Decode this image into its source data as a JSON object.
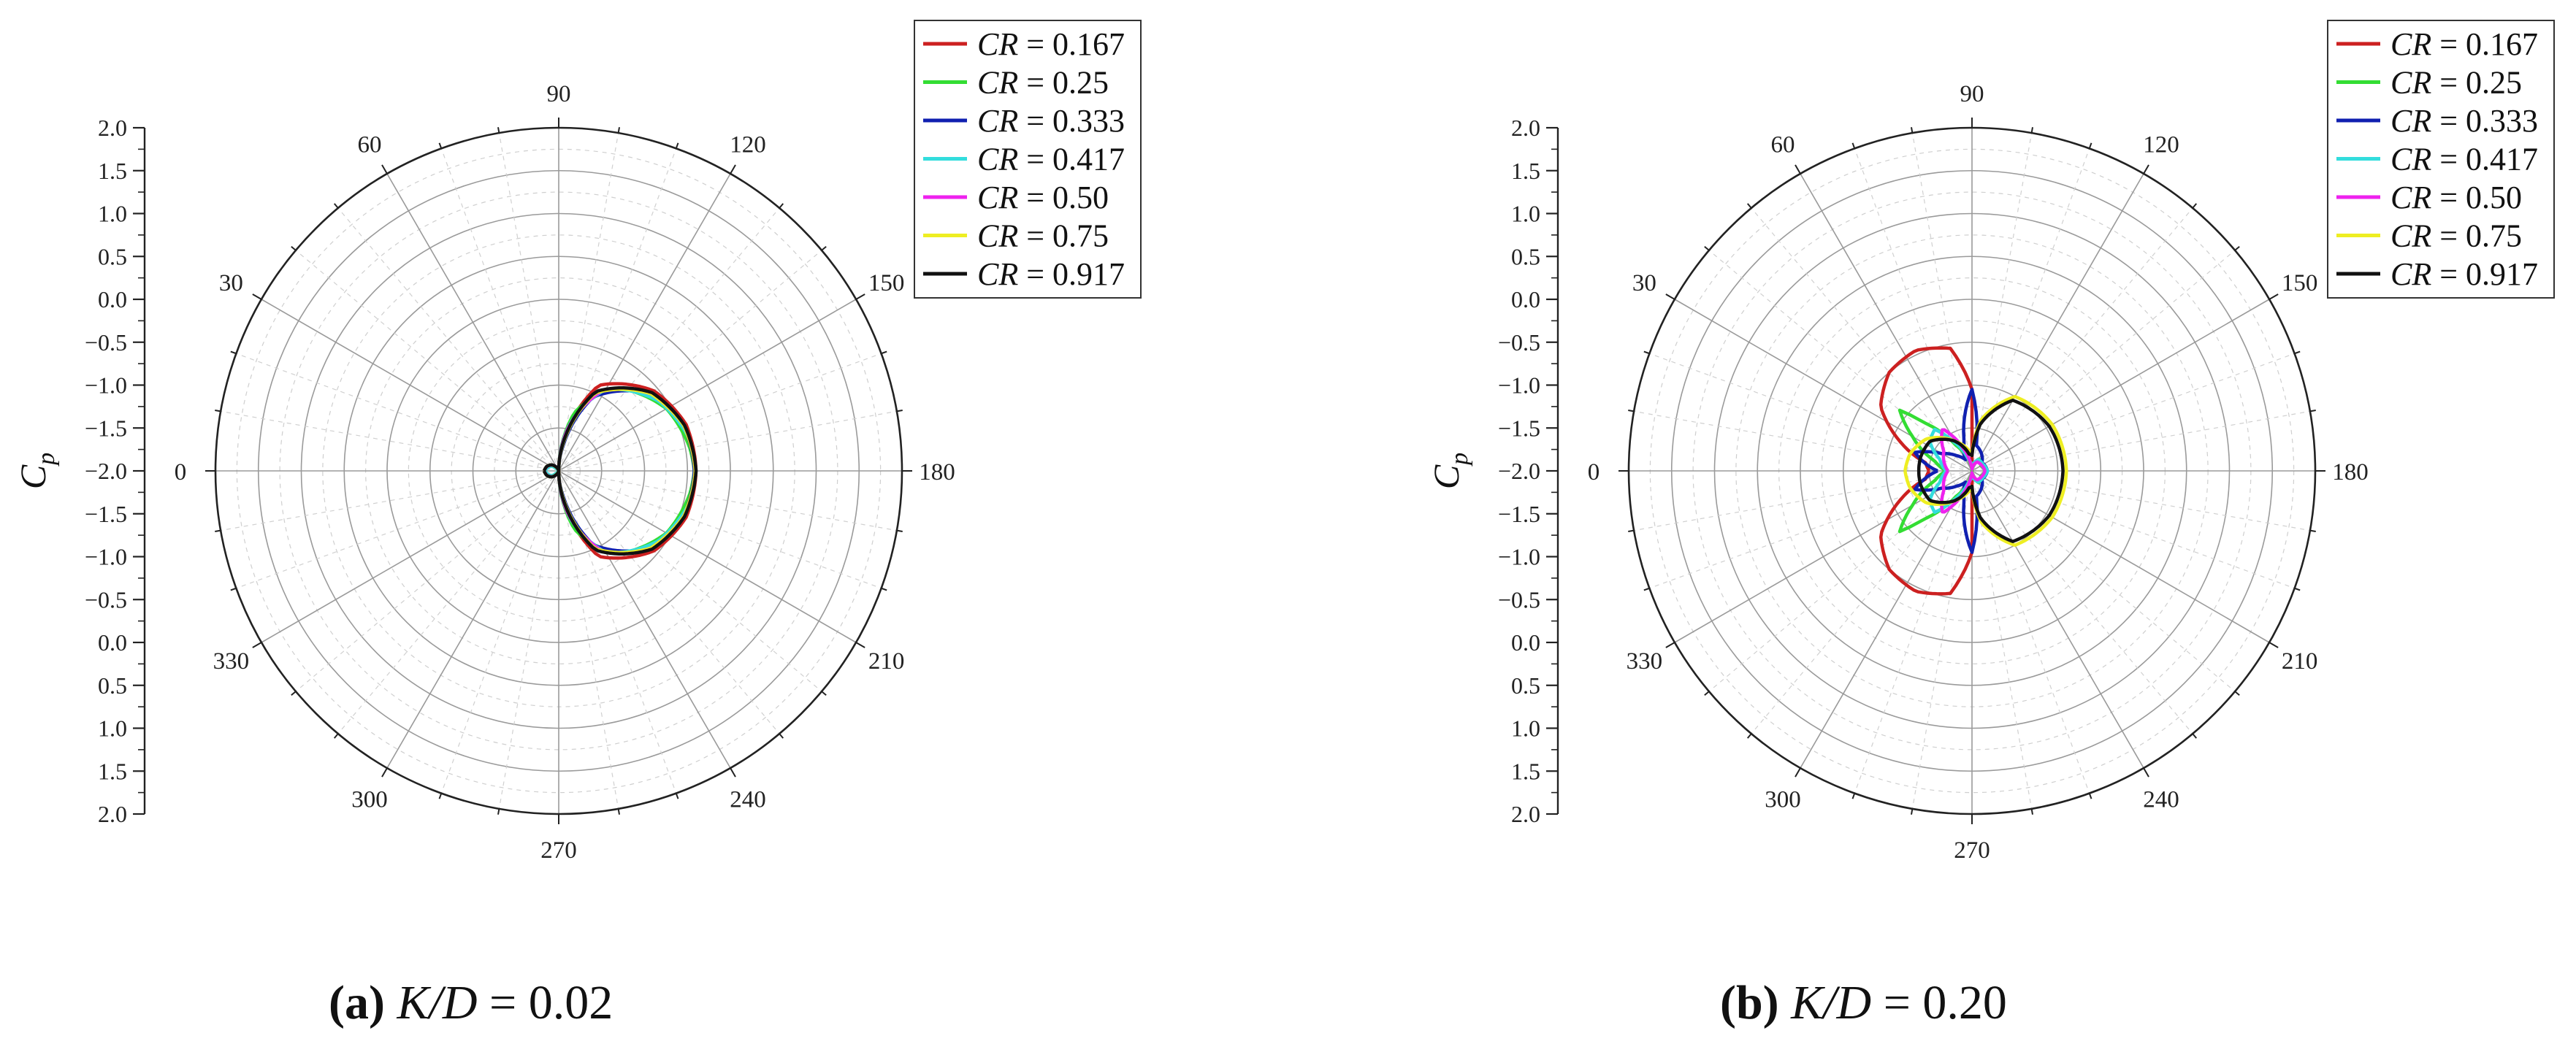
{
  "chart_data": [
    {
      "type": "polar-line",
      "panel": "a",
      "caption": {
        "letter": "(a)",
        "text_italic": "K/D",
        "text_rest": " = 0.02"
      },
      "ylabel": {
        "main": "C",
        "sub": "p"
      },
      "radial_axis": {
        "cp_range": [
          -2.0,
          2.0
        ],
        "tick_labels": [
          "2.0",
          "1.5",
          "1.0",
          "0.5",
          "0.0",
          "-0.5",
          "-1.0",
          "-1.5",
          "-2.0",
          "-1.5",
          "-1.0",
          "-0.5",
          "0.0",
          "0.5",
          "1.0",
          "1.5",
          "2.0"
        ]
      },
      "angular_axis": {
        "unit": "deg",
        "labels": [
          "0",
          "30",
          "60",
          "90",
          "120",
          "150",
          "180",
          "210",
          "240",
          "270",
          "300",
          "330"
        ]
      },
      "series": [
        {
          "name": "CR = 0.167",
          "color": "#cc2020",
          "key": [
            [
              0,
              -1.84
            ],
            [
              20,
              -1.86
            ],
            [
              40,
              -1.9
            ],
            [
              58,
              -1.98
            ],
            [
              75,
              -2.0
            ],
            [
              90,
              -2.0
            ],
            [
              100,
              -1.6
            ],
            [
              115,
              -0.9
            ],
            [
              140,
              -0.55
            ],
            [
              160,
              -0.42
            ],
            [
              180,
              -0.4
            ]
          ]
        },
        {
          "name": "CR = 0.25",
          "color": "#33dd33",
          "key": [
            [
              0,
              -1.84
            ],
            [
              20,
              -1.86
            ],
            [
              40,
              -1.92
            ],
            [
              55,
              -2.0
            ],
            [
              70,
              -2.0
            ],
            [
              90,
              -2.0
            ],
            [
              105,
              -1.3
            ],
            [
              125,
              -0.82
            ],
            [
              150,
              -0.55
            ],
            [
              170,
              -0.45
            ],
            [
              180,
              -0.42
            ]
          ]
        },
        {
          "name": "CR = 0.333",
          "color": "#1020b0",
          "key": [
            [
              0,
              -1.84
            ],
            [
              22,
              -1.86
            ],
            [
              40,
              -1.9
            ],
            [
              58,
              -1.97
            ],
            [
              72,
              -2.0
            ],
            [
              90,
              -2.0
            ],
            [
              100,
              -1.7
            ],
            [
              115,
              -1.05
            ],
            [
              140,
              -0.6
            ],
            [
              160,
              -0.45
            ],
            [
              180,
              -0.42
            ]
          ]
        },
        {
          "name": "CR = 0.417",
          "color": "#33dddd",
          "key": [
            [
              0,
              -1.84
            ],
            [
              18,
              -1.87
            ],
            [
              35,
              -1.9
            ],
            [
              50,
              -2.0
            ],
            [
              65,
              -2.0
            ],
            [
              90,
              -2.0
            ],
            [
              103,
              -1.45
            ],
            [
              120,
              -0.9
            ],
            [
              145,
              -0.58
            ],
            [
              165,
              -0.44
            ],
            [
              180,
              -0.4
            ]
          ]
        },
        {
          "name": "CR = 0.50",
          "color": "#ee22ee",
          "key": [
            [
              0,
              -1.83
            ],
            [
              25,
              -1.86
            ],
            [
              42,
              -1.9
            ],
            [
              62,
              -1.96
            ],
            [
              80,
              -2.0
            ],
            [
              90,
              -2.0
            ],
            [
              102,
              -1.5
            ],
            [
              118,
              -0.95
            ],
            [
              140,
              -0.6
            ],
            [
              160,
              -0.45
            ],
            [
              180,
              -0.41
            ]
          ]
        },
        {
          "name": "CR = 0.75",
          "color": "#eeee22",
          "key": [
            [
              0,
              -1.83
            ],
            [
              20,
              -1.85
            ],
            [
              40,
              -1.89
            ],
            [
              58,
              -1.96
            ],
            [
              75,
              -2.0
            ],
            [
              90,
              -2.0
            ],
            [
              100,
              -1.65
            ],
            [
              115,
              -1.0
            ],
            [
              140,
              -0.6
            ],
            [
              160,
              -0.45
            ],
            [
              180,
              -0.41
            ]
          ]
        },
        {
          "name": "CR = 0.917",
          "color": "#111111",
          "key": [
            [
              0,
              -1.83
            ],
            [
              20,
              -1.85
            ],
            [
              40,
              -1.89
            ],
            [
              58,
              -1.95
            ],
            [
              75,
              -2.0
            ],
            [
              90,
              -2.0
            ],
            [
              100,
              -1.62
            ],
            [
              115,
              -0.98
            ],
            [
              140,
              -0.58
            ],
            [
              160,
              -0.44
            ],
            [
              180,
              -0.4
            ]
          ]
        }
      ]
    },
    {
      "type": "polar-line",
      "panel": "b",
      "caption": {
        "letter": "(b)",
        "text_italic": "K/D",
        "text_rest": " = 0.20"
      },
      "ylabel": {
        "main": "C",
        "sub": "p"
      },
      "radial_axis": {
        "cp_range": [
          -2.0,
          2.0
        ],
        "tick_labels": [
          "2.0",
          "1.5",
          "1.0",
          "0.5",
          "0.0",
          "-0.5",
          "-1.0",
          "-1.5",
          "-2.0",
          "-1.5",
          "-1.0",
          "-0.5",
          "0.0",
          "0.5",
          "1.0",
          "1.5",
          "2.0"
        ]
      },
      "angular_axis": {
        "unit": "deg",
        "labels": [
          "0",
          "30",
          "60",
          "90",
          "120",
          "150",
          "180",
          "210",
          "240",
          "270",
          "300",
          "330"
        ]
      },
      "series": [
        {
          "name": "CR = 0.167",
          "color": "#cc2020",
          "key": [
            [
              0,
              -1.5
            ],
            [
              10,
              -1.45
            ],
            [
              22,
              -1.1
            ],
            [
              35,
              -0.7
            ],
            [
              50,
              -0.5
            ],
            [
              65,
              -0.45
            ],
            [
              80,
              -0.55
            ],
            [
              90,
              -1.05
            ],
            [
              92,
              -2.0
            ],
            [
              110,
              -2.0
            ],
            [
              180,
              -2.0
            ]
          ]
        },
        {
          "name": "CR = 0.25",
          "color": "#33dd33",
          "key": [
            [
              0,
              -1.7
            ],
            [
              15,
              -1.55
            ],
            [
              30,
              -1.2
            ],
            [
              40,
              -0.9
            ],
            [
              45,
              -1.2
            ],
            [
              58,
              -1.65
            ],
            [
              75,
              -1.9
            ],
            [
              90,
              -2.0
            ],
            [
              120,
              -1.84
            ],
            [
              150,
              -1.88
            ],
            [
              180,
              -1.85
            ]
          ]
        },
        {
          "name": "CR = 0.333",
          "color": "#1020b0",
          "key": [
            [
              0,
              -1.6
            ],
            [
              18,
              -1.3
            ],
            [
              22,
              -1.4
            ],
            [
              30,
              -1.6
            ],
            [
              45,
              -1.75
            ],
            [
              60,
              -1.85
            ],
            [
              75,
              -1.65
            ],
            [
              90,
              -1.05
            ],
            [
              100,
              -1.7
            ],
            [
              140,
              -1.85
            ],
            [
              180,
              -1.82
            ]
          ]
        },
        {
          "name": "CR = 0.417",
          "color": "#33dddd",
          "key": [
            [
              0,
              -1.7
            ],
            [
              20,
              -1.6
            ],
            [
              35,
              -1.4
            ],
            [
              48,
              -1.35
            ],
            [
              58,
              -1.6
            ],
            [
              72,
              -1.85
            ],
            [
              90,
              -1.95
            ],
            [
              120,
              -1.85
            ],
            [
              150,
              -1.85
            ],
            [
              180,
              -1.82
            ]
          ]
        },
        {
          "name": "CR = 0.50",
          "color": "#ee22ee",
          "key": [
            [
              0,
              -1.72
            ],
            [
              20,
              -1.65
            ],
            [
              35,
              -1.6
            ],
            [
              55,
              -1.4
            ],
            [
              68,
              -1.7
            ],
            [
              80,
              -1.92
            ],
            [
              90,
              -1.98
            ],
            [
              120,
              -1.88
            ],
            [
              150,
              -1.87
            ],
            [
              180,
              -1.85
            ]
          ]
        },
        {
          "name": "CR = 0.75",
          "color": "#eeee22",
          "key": [
            [
              0,
              -1.22
            ],
            [
              15,
              -1.25
            ],
            [
              35,
              -1.35
            ],
            [
              60,
              -1.6
            ],
            [
              80,
              -1.75
            ],
            [
              90,
              -1.8
            ],
            [
              100,
              -1.4
            ],
            [
              120,
              -1.0
            ],
            [
              150,
              -0.92
            ],
            [
              180,
              -0.9
            ]
          ]
        },
        {
          "name": "CR = 0.917",
          "color": "#111111",
          "key": [
            [
              0,
              -1.38
            ],
            [
              15,
              -1.38
            ],
            [
              35,
              -1.4
            ],
            [
              60,
              -1.6
            ],
            [
              80,
              -1.8
            ],
            [
              90,
              -1.82
            ],
            [
              100,
              -1.45
            ],
            [
              120,
              -1.05
            ],
            [
              150,
              -0.96
            ],
            [
              180,
              -0.94
            ]
          ]
        }
      ]
    }
  ]
}
